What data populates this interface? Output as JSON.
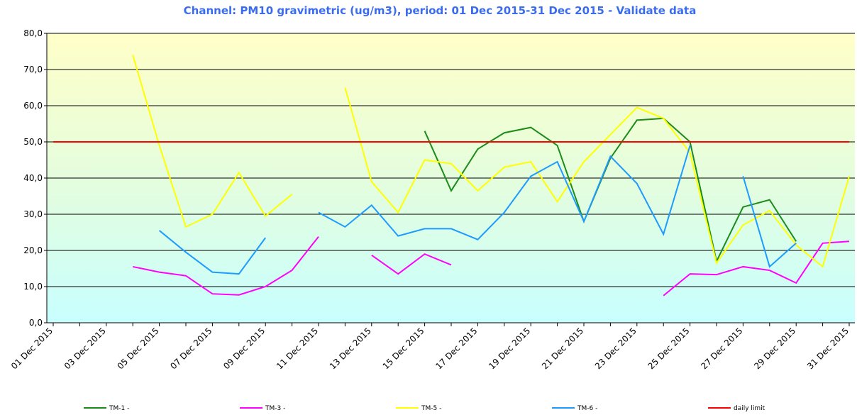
{
  "chart_data": {
    "type": "line",
    "title": "Channel: PM10 gravimetric (ug/m3), period: 01 Dec 2015-31 Dec 2015 - Validate data",
    "categories": [
      "01 Dec 2015",
      null,
      "03 Dec 2015",
      null,
      "05 Dec 2015",
      null,
      "07 Dec 2015",
      null,
      "09 Dec 2015",
      null,
      "11 Dec 2015",
      null,
      "13 Dec 2015",
      null,
      "15 Dec 2015",
      null,
      "17 Dec 2015",
      null,
      "19 Dec 2015",
      null,
      "21 Dec 2015",
      null,
      "23 Dec 2015",
      null,
      "25 Dec 2015",
      null,
      "27 Dec 2015",
      null,
      "29 Dec 2015",
      null,
      "31 Dec 2015"
    ],
    "series": [
      {
        "name": "TM-1 -",
        "color": "#1a8c1a",
        "values": [
          null,
          null,
          null,
          null,
          null,
          null,
          null,
          null,
          null,
          null,
          null,
          null,
          null,
          null,
          53,
          36.5,
          48,
          52.5,
          54,
          49,
          28,
          45.5,
          56,
          56.5,
          50,
          17,
          32,
          34,
          22.5,
          null,
          null
        ]
      },
      {
        "name": "TM-3 -",
        "color": "#ff00ff",
        "values": [
          null,
          null,
          null,
          15.5,
          14,
          13,
          8,
          7.7,
          10,
          14.5,
          23.8,
          null,
          18.7,
          13.5,
          19,
          16,
          null,
          null,
          null,
          null,
          null,
          null,
          null,
          7.5,
          13.5,
          13.3,
          15.5,
          14.5,
          11,
          22,
          22.5
        ]
      },
      {
        "name": "TM-5 -",
        "color": "#ffff00",
        "values": [
          null,
          null,
          null,
          74,
          49,
          26.5,
          30,
          41.5,
          29.5,
          35.5,
          null,
          65,
          39,
          30.5,
          45,
          44,
          36.5,
          43,
          44.5,
          33.5,
          44.5,
          52,
          59.5,
          56.5,
          47,
          16.5,
          27,
          31,
          21.5,
          15.5,
          40.5
        ]
      },
      {
        "name": "TM-6 -",
        "color": "#1e9bff",
        "values": [
          null,
          null,
          null,
          null,
          25.5,
          19.5,
          14,
          13.5,
          23.5,
          null,
          30.5,
          26.5,
          32.5,
          24,
          26,
          26,
          23,
          30.5,
          40.5,
          44.5,
          28,
          46,
          38.5,
          24.5,
          49,
          null,
          40.5,
          15.5,
          22,
          null,
          null
        ]
      },
      {
        "name": "daily limit",
        "color": "#ff0000",
        "values": [
          50,
          50,
          50,
          50,
          50,
          50,
          50,
          50,
          50,
          50,
          50,
          50,
          50,
          50,
          50,
          50,
          50,
          50,
          50,
          50,
          50,
          50,
          50,
          50,
          50,
          50,
          50,
          50,
          50,
          50,
          50
        ]
      }
    ],
    "ylim": [
      0,
      80
    ],
    "yticks": [
      {
        "value": 0,
        "label": "0,0"
      },
      {
        "value": 10,
        "label": "10,0"
      },
      {
        "value": 20,
        "label": "20,0"
      },
      {
        "value": 30,
        "label": "30,0"
      },
      {
        "value": 40,
        "label": "40,0"
      },
      {
        "value": 50,
        "label": "50,0"
      },
      {
        "value": 60,
        "label": "60,0"
      },
      {
        "value": 70,
        "label": "70,0"
      },
      {
        "value": 80,
        "label": "80,0"
      }
    ],
    "grid": true
  }
}
